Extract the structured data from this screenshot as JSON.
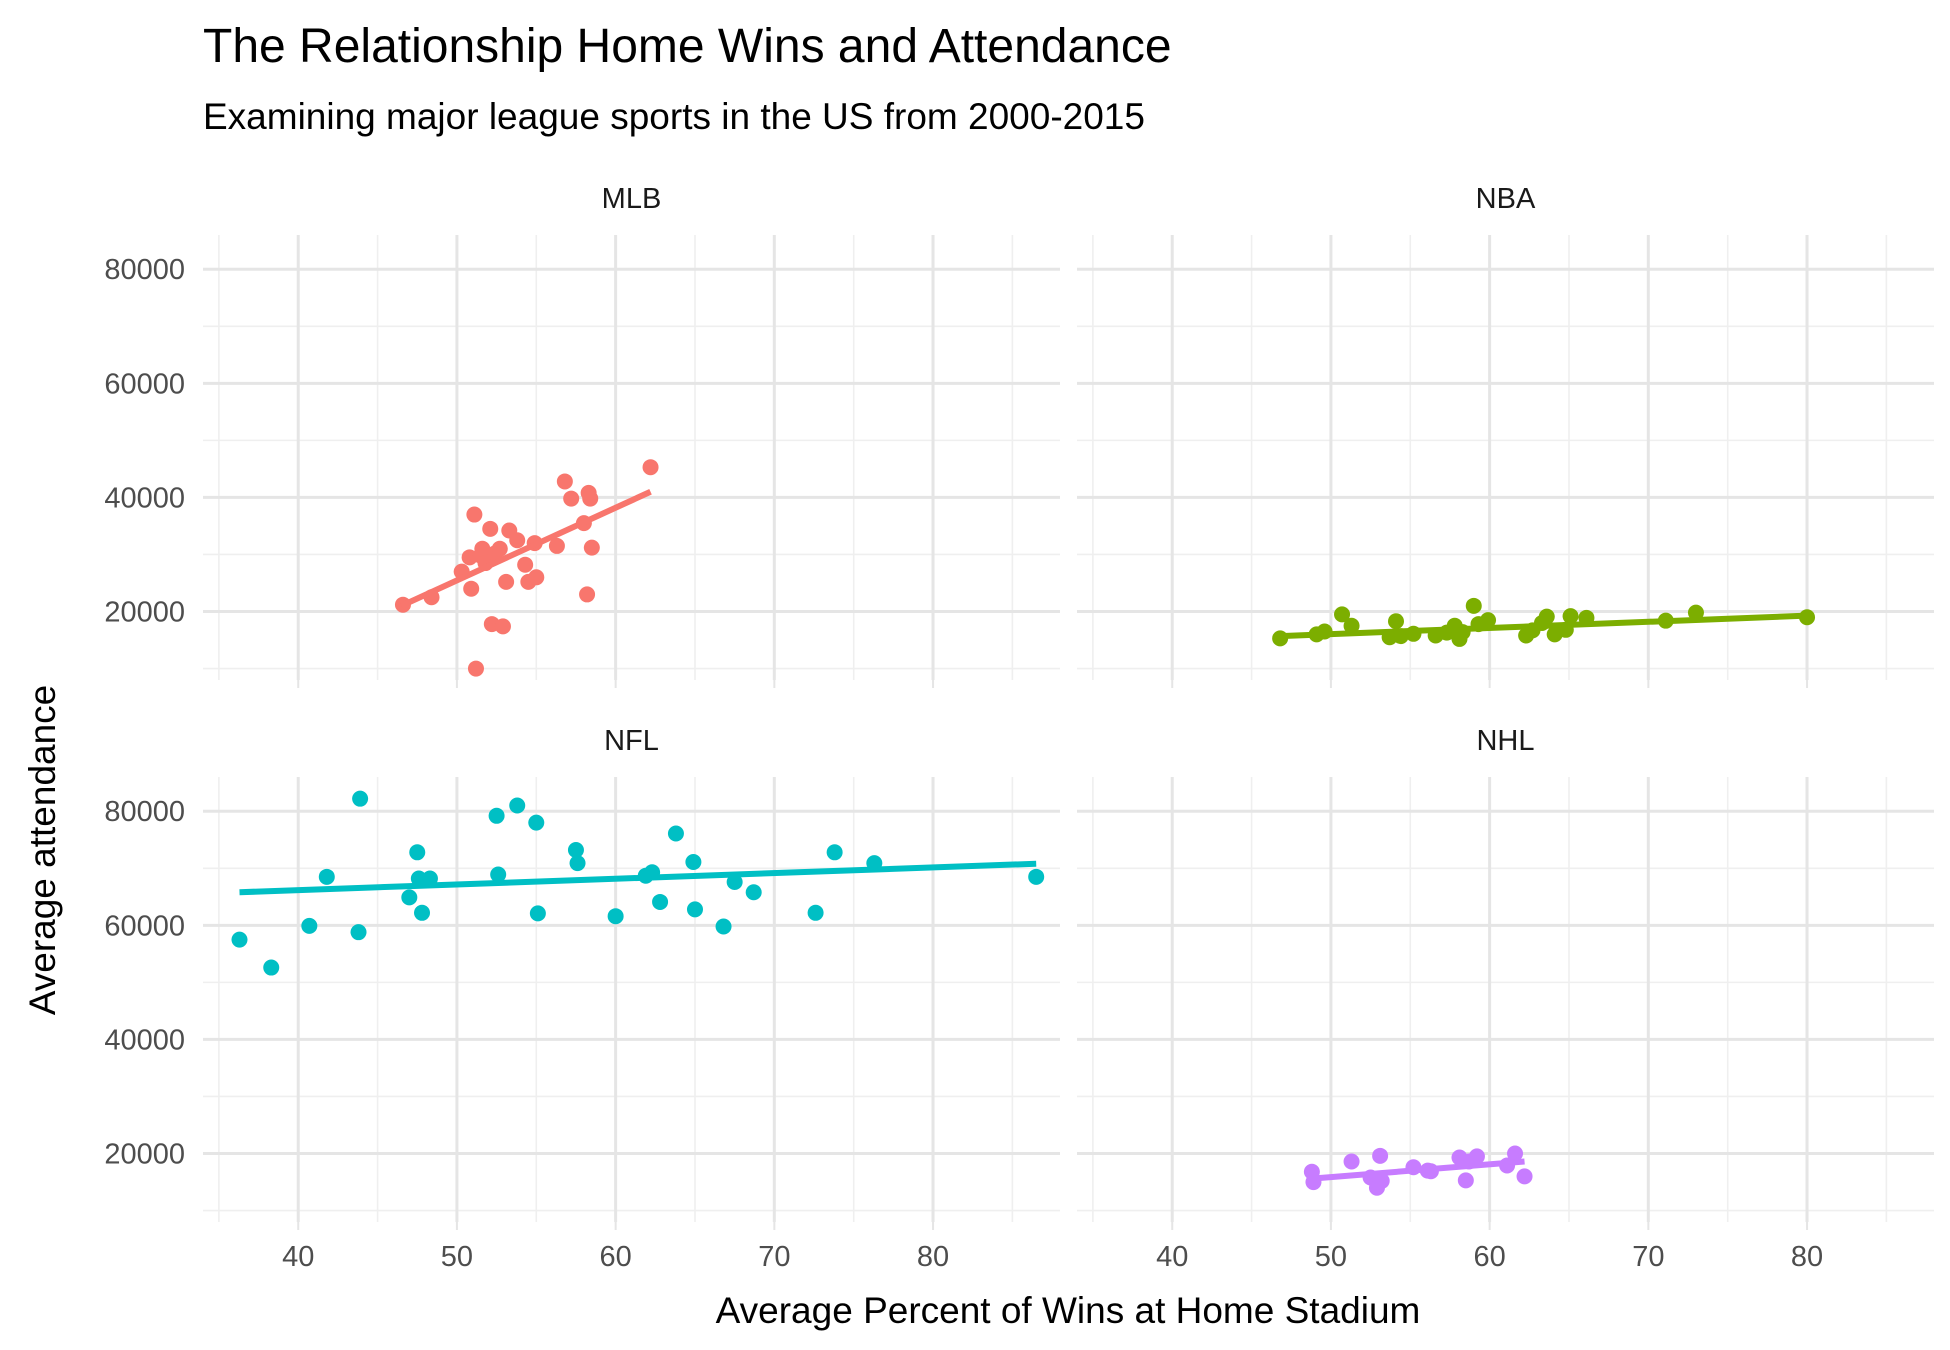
{
  "chart_data": {
    "type": "scatter",
    "title": "The Relationship Home Wins and Attendance",
    "subtitle": "Examining major league sports in the US from 2000-2015",
    "xlabel": "Average Percent of Wins at Home Stadium",
    "ylabel": "Average attendance",
    "xlim": [
      34,
      88
    ],
    "x_ticks": [
      40,
      50,
      60,
      70,
      80
    ],
    "x_tick_labels": [
      "40",
      "50",
      "60",
      "70",
      "80"
    ],
    "y_ticks": [
      20000,
      40000,
      60000,
      80000
    ],
    "y_tick_labels": [
      "20000",
      "40000",
      "60000",
      "80000"
    ],
    "grid": true,
    "legend": "none",
    "panels": [
      {
        "name": "MLB",
        "color": "#F8766D",
        "ylim": [
          8000,
          86000
        ],
        "fit": {
          "x": [
            46.5,
            62.2
          ],
          "y": [
            21000,
            41000
          ]
        },
        "points": [
          {
            "x": 46.6,
            "y": 21200
          },
          {
            "x": 48.4,
            "y": 22500
          },
          {
            "x": 50.3,
            "y": 27000
          },
          {
            "x": 50.8,
            "y": 29500
          },
          {
            "x": 50.9,
            "y": 24000
          },
          {
            "x": 51.1,
            "y": 37000
          },
          {
            "x": 51.2,
            "y": 10000
          },
          {
            "x": 51.5,
            "y": 29800
          },
          {
            "x": 51.6,
            "y": 31000
          },
          {
            "x": 51.8,
            "y": 28500
          },
          {
            "x": 52.1,
            "y": 34500
          },
          {
            "x": 52.2,
            "y": 17800
          },
          {
            "x": 52.4,
            "y": 30200
          },
          {
            "x": 52.7,
            "y": 31000
          },
          {
            "x": 52.9,
            "y": 17400
          },
          {
            "x": 53.1,
            "y": 25200
          },
          {
            "x": 53.3,
            "y": 34200
          },
          {
            "x": 53.8,
            "y": 32500
          },
          {
            "x": 54.3,
            "y": 28200
          },
          {
            "x": 54.5,
            "y": 25200
          },
          {
            "x": 54.9,
            "y": 32000
          },
          {
            "x": 55.0,
            "y": 26000
          },
          {
            "x": 56.3,
            "y": 31500
          },
          {
            "x": 56.8,
            "y": 42800
          },
          {
            "x": 57.2,
            "y": 39800
          },
          {
            "x": 58.0,
            "y": 35500
          },
          {
            "x": 58.2,
            "y": 23000
          },
          {
            "x": 58.3,
            "y": 40800
          },
          {
            "x": 58.4,
            "y": 39800
          },
          {
            "x": 58.5,
            "y": 31200
          },
          {
            "x": 62.2,
            "y": 45300
          }
        ]
      },
      {
        "name": "NBA",
        "color": "#7CAE00",
        "ylim": [
          8000,
          86000
        ],
        "fit": {
          "x": [
            46.8,
            80.2
          ],
          "y": [
            15700,
            19300
          ]
        },
        "points": [
          {
            "x": 46.8,
            "y": 15300
          },
          {
            "x": 49.1,
            "y": 16000
          },
          {
            "x": 49.6,
            "y": 16500
          },
          {
            "x": 50.7,
            "y": 19500
          },
          {
            "x": 51.3,
            "y": 17500
          },
          {
            "x": 53.7,
            "y": 15500
          },
          {
            "x": 54.1,
            "y": 18300
          },
          {
            "x": 54.4,
            "y": 15700
          },
          {
            "x": 55.2,
            "y": 16100
          },
          {
            "x": 56.6,
            "y": 15800
          },
          {
            "x": 57.3,
            "y": 16300
          },
          {
            "x": 57.8,
            "y": 17500
          },
          {
            "x": 58.1,
            "y": 15200
          },
          {
            "x": 58.3,
            "y": 16400
          },
          {
            "x": 59.0,
            "y": 21000
          },
          {
            "x": 59.3,
            "y": 17800
          },
          {
            "x": 59.9,
            "y": 18500
          },
          {
            "x": 62.3,
            "y": 15800
          },
          {
            "x": 62.7,
            "y": 16700
          },
          {
            "x": 63.3,
            "y": 18000
          },
          {
            "x": 63.6,
            "y": 19100
          },
          {
            "x": 64.1,
            "y": 16000
          },
          {
            "x": 64.8,
            "y": 16800
          },
          {
            "x": 65.1,
            "y": 19200
          },
          {
            "x": 66.1,
            "y": 18900
          },
          {
            "x": 71.1,
            "y": 18400
          },
          {
            "x": 73.0,
            "y": 19800
          },
          {
            "x": 80.0,
            "y": 19000
          }
        ]
      },
      {
        "name": "NFL",
        "color": "#00BFC4",
        "ylim": [
          8000,
          86000
        ],
        "fit": {
          "x": [
            36.3,
            86.5
          ],
          "y": [
            65800,
            70800
          ]
        },
        "points": [
          {
            "x": 36.3,
            "y": 57500
          },
          {
            "x": 38.3,
            "y": 52600
          },
          {
            "x": 40.7,
            "y": 59900
          },
          {
            "x": 41.8,
            "y": 68500
          },
          {
            "x": 43.8,
            "y": 58800
          },
          {
            "x": 43.9,
            "y": 82200
          },
          {
            "x": 47.0,
            "y": 64900
          },
          {
            "x": 47.5,
            "y": 72800
          },
          {
            "x": 47.6,
            "y": 68200
          },
          {
            "x": 47.8,
            "y": 62200
          },
          {
            "x": 48.3,
            "y": 68200
          },
          {
            "x": 52.5,
            "y": 79200
          },
          {
            "x": 52.6,
            "y": 68900
          },
          {
            "x": 53.8,
            "y": 81000
          },
          {
            "x": 55.0,
            "y": 78000
          },
          {
            "x": 55.1,
            "y": 62100
          },
          {
            "x": 57.5,
            "y": 73200
          },
          {
            "x": 57.6,
            "y": 70900
          },
          {
            "x": 60.0,
            "y": 61600
          },
          {
            "x": 61.9,
            "y": 68700
          },
          {
            "x": 62.3,
            "y": 69300
          },
          {
            "x": 62.8,
            "y": 64100
          },
          {
            "x": 63.8,
            "y": 76100
          },
          {
            "x": 64.9,
            "y": 71100
          },
          {
            "x": 65.0,
            "y": 62800
          },
          {
            "x": 66.8,
            "y": 59800
          },
          {
            "x": 67.5,
            "y": 67600
          },
          {
            "x": 68.7,
            "y": 65800
          },
          {
            "x": 72.6,
            "y": 62200
          },
          {
            "x": 73.8,
            "y": 72800
          },
          {
            "x": 76.3,
            "y": 70900
          },
          {
            "x": 86.5,
            "y": 68500
          }
        ]
      },
      {
        "name": "NHL",
        "color": "#C77CFF",
        "ylim": [
          8000,
          86000
        ],
        "fit": {
          "x": [
            48.8,
            62.2
          ],
          "y": [
            15600,
            18600
          ]
        },
        "points": [
          {
            "x": 48.8,
            "y": 16800
          },
          {
            "x": 48.9,
            "y": 15000
          },
          {
            "x": 51.3,
            "y": 18600
          },
          {
            "x": 52.5,
            "y": 15800
          },
          {
            "x": 52.9,
            "y": 14000
          },
          {
            "x": 53.1,
            "y": 19600
          },
          {
            "x": 53.2,
            "y": 15200
          },
          {
            "x": 55.2,
            "y": 17600
          },
          {
            "x": 56.1,
            "y": 17000
          },
          {
            "x": 56.3,
            "y": 16900
          },
          {
            "x": 58.1,
            "y": 19300
          },
          {
            "x": 58.5,
            "y": 15300
          },
          {
            "x": 58.7,
            "y": 18600
          },
          {
            "x": 59.2,
            "y": 19500
          },
          {
            "x": 61.1,
            "y": 17900
          },
          {
            "x": 61.6,
            "y": 20000
          },
          {
            "x": 62.2,
            "y": 16000
          }
        ]
      }
    ]
  }
}
